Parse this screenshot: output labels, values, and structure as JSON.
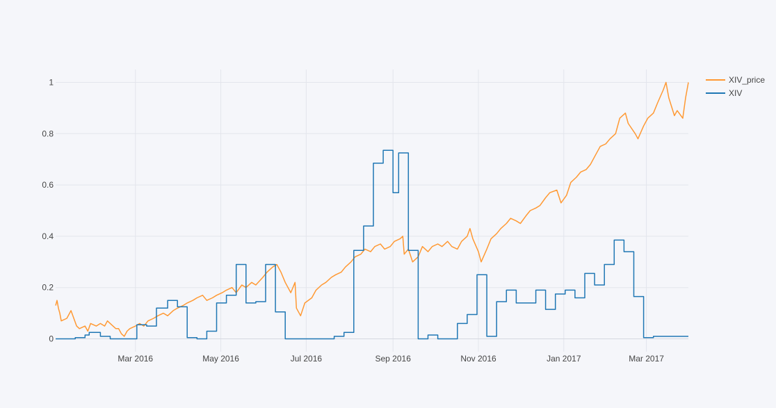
{
  "chart_data": {
    "type": "line",
    "title": "",
    "xlabel": "",
    "ylabel": "",
    "x_range": [
      "2016-01-04",
      "2017-03-31"
    ],
    "ylim": [
      -0.05,
      1.05
    ],
    "grid": true,
    "legend_placement": "top-right",
    "x_ticks": [
      {
        "date": "2016-03-01",
        "label": "Mar 2016"
      },
      {
        "date": "2016-05-01",
        "label": "May 2016"
      },
      {
        "date": "2016-07-01",
        "label": "Jul 2016"
      },
      {
        "date": "2016-09-01",
        "label": "Sep 2016"
      },
      {
        "date": "2016-11-01",
        "label": "Nov 2016"
      },
      {
        "date": "2017-01-01",
        "label": "Jan 2017"
      },
      {
        "date": "2017-03-01",
        "label": "Mar 2017"
      }
    ],
    "y_ticks": [
      {
        "value": 0,
        "label": "0"
      },
      {
        "value": 0.2,
        "label": "0.2"
      },
      {
        "value": 0.4,
        "label": "0.4"
      },
      {
        "value": 0.6,
        "label": "0.6"
      },
      {
        "value": 0.8,
        "label": "0.8"
      },
      {
        "value": 1,
        "label": "1"
      }
    ],
    "series": [
      {
        "name": "XIV_price",
        "color": "#ff9933",
        "line_shape": "linear",
        "points": [
          [
            "2016-01-04",
            0.13
          ],
          [
            "2016-01-05",
            0.15
          ],
          [
            "2016-01-06",
            0.12
          ],
          [
            "2016-01-07",
            0.1
          ],
          [
            "2016-01-08",
            0.07
          ],
          [
            "2016-01-12",
            0.08
          ],
          [
            "2016-01-14",
            0.1
          ],
          [
            "2016-01-15",
            0.11
          ],
          [
            "2016-01-19",
            0.05
          ],
          [
            "2016-01-21",
            0.04
          ],
          [
            "2016-01-25",
            0.05
          ],
          [
            "2016-01-27",
            0.03
          ],
          [
            "2016-01-29",
            0.06
          ],
          [
            "2016-02-02",
            0.05
          ],
          [
            "2016-02-05",
            0.06
          ],
          [
            "2016-02-08",
            0.05
          ],
          [
            "2016-02-10",
            0.07
          ],
          [
            "2016-02-12",
            0.06
          ],
          [
            "2016-02-16",
            0.04
          ],
          [
            "2016-02-18",
            0.04
          ],
          [
            "2016-02-20",
            0.02
          ],
          [
            "2016-02-22",
            0.01
          ],
          [
            "2016-02-24",
            0.03
          ],
          [
            "2016-02-26",
            0.04
          ],
          [
            "2016-03-01",
            0.05
          ],
          [
            "2016-03-04",
            0.06
          ],
          [
            "2016-03-07",
            0.05
          ],
          [
            "2016-03-10",
            0.07
          ],
          [
            "2016-03-14",
            0.08
          ],
          [
            "2016-03-17",
            0.09
          ],
          [
            "2016-03-21",
            0.1
          ],
          [
            "2016-03-24",
            0.09
          ],
          [
            "2016-03-28",
            0.11
          ],
          [
            "2016-03-31",
            0.12
          ],
          [
            "2016-04-04",
            0.13
          ],
          [
            "2016-04-07",
            0.14
          ],
          [
            "2016-04-11",
            0.15
          ],
          [
            "2016-04-14",
            0.16
          ],
          [
            "2016-04-18",
            0.17
          ],
          [
            "2016-04-21",
            0.15
          ],
          [
            "2016-04-25",
            0.16
          ],
          [
            "2016-04-28",
            0.17
          ],
          [
            "2016-05-02",
            0.18
          ],
          [
            "2016-05-05",
            0.19
          ],
          [
            "2016-05-09",
            0.2
          ],
          [
            "2016-05-12",
            0.18
          ],
          [
            "2016-05-16",
            0.21
          ],
          [
            "2016-05-19",
            0.2
          ],
          [
            "2016-05-23",
            0.22
          ],
          [
            "2016-05-26",
            0.21
          ],
          [
            "2016-05-31",
            0.24
          ],
          [
            "2016-06-03",
            0.26
          ],
          [
            "2016-06-07",
            0.28
          ],
          [
            "2016-06-10",
            0.29
          ],
          [
            "2016-06-13",
            0.26
          ],
          [
            "2016-06-16",
            0.22
          ],
          [
            "2016-06-20",
            0.18
          ],
          [
            "2016-06-23",
            0.22
          ],
          [
            "2016-06-24",
            0.12
          ],
          [
            "2016-06-27",
            0.09
          ],
          [
            "2016-06-30",
            0.14
          ],
          [
            "2016-07-05",
            0.16
          ],
          [
            "2016-07-08",
            0.19
          ],
          [
            "2016-07-12",
            0.21
          ],
          [
            "2016-07-15",
            0.22
          ],
          [
            "2016-07-19",
            0.24
          ],
          [
            "2016-07-22",
            0.25
          ],
          [
            "2016-07-26",
            0.26
          ],
          [
            "2016-07-29",
            0.28
          ],
          [
            "2016-08-02",
            0.3
          ],
          [
            "2016-08-05",
            0.32
          ],
          [
            "2016-08-09",
            0.33
          ],
          [
            "2016-08-12",
            0.35
          ],
          [
            "2016-08-16",
            0.34
          ],
          [
            "2016-08-19",
            0.36
          ],
          [
            "2016-08-23",
            0.37
          ],
          [
            "2016-08-26",
            0.35
          ],
          [
            "2016-08-30",
            0.36
          ],
          [
            "2016-09-02",
            0.38
          ],
          [
            "2016-09-06",
            0.39
          ],
          [
            "2016-09-08",
            0.4
          ],
          [
            "2016-09-09",
            0.33
          ],
          [
            "2016-09-12",
            0.35
          ],
          [
            "2016-09-15",
            0.3
          ],
          [
            "2016-09-19",
            0.32
          ],
          [
            "2016-09-22",
            0.36
          ],
          [
            "2016-09-26",
            0.34
          ],
          [
            "2016-09-29",
            0.36
          ],
          [
            "2016-10-03",
            0.37
          ],
          [
            "2016-10-06",
            0.36
          ],
          [
            "2016-10-10",
            0.38
          ],
          [
            "2016-10-13",
            0.36
          ],
          [
            "2016-10-17",
            0.35
          ],
          [
            "2016-10-20",
            0.38
          ],
          [
            "2016-10-24",
            0.4
          ],
          [
            "2016-10-26",
            0.43
          ],
          [
            "2016-10-28",
            0.39
          ],
          [
            "2016-11-01",
            0.34
          ],
          [
            "2016-11-03",
            0.3
          ],
          [
            "2016-11-07",
            0.35
          ],
          [
            "2016-11-10",
            0.39
          ],
          [
            "2016-11-14",
            0.41
          ],
          [
            "2016-11-17",
            0.43
          ],
          [
            "2016-11-21",
            0.45
          ],
          [
            "2016-11-24",
            0.47
          ],
          [
            "2016-11-28",
            0.46
          ],
          [
            "2016-12-01",
            0.45
          ],
          [
            "2016-12-05",
            0.48
          ],
          [
            "2016-12-08",
            0.5
          ],
          [
            "2016-12-12",
            0.51
          ],
          [
            "2016-12-15",
            0.52
          ],
          [
            "2016-12-19",
            0.55
          ],
          [
            "2016-12-22",
            0.57
          ],
          [
            "2016-12-27",
            0.58
          ],
          [
            "2016-12-30",
            0.53
          ],
          [
            "2017-01-03",
            0.56
          ],
          [
            "2017-01-06",
            0.61
          ],
          [
            "2017-01-10",
            0.63
          ],
          [
            "2017-01-13",
            0.65
          ],
          [
            "2017-01-17",
            0.66
          ],
          [
            "2017-01-20",
            0.68
          ],
          [
            "2017-01-24",
            0.72
          ],
          [
            "2017-01-27",
            0.75
          ],
          [
            "2017-01-31",
            0.76
          ],
          [
            "2017-02-03",
            0.78
          ],
          [
            "2017-02-07",
            0.8
          ],
          [
            "2017-02-10",
            0.86
          ],
          [
            "2017-02-14",
            0.88
          ],
          [
            "2017-02-16",
            0.84
          ],
          [
            "2017-02-21",
            0.8
          ],
          [
            "2017-02-23",
            0.78
          ],
          [
            "2017-02-27",
            0.83
          ],
          [
            "2017-03-02",
            0.86
          ],
          [
            "2017-03-06",
            0.88
          ],
          [
            "2017-03-09",
            0.92
          ],
          [
            "2017-03-13",
            0.97
          ],
          [
            "2017-03-15",
            1.0
          ],
          [
            "2017-03-17",
            0.94
          ],
          [
            "2017-03-21",
            0.87
          ],
          [
            "2017-03-23",
            0.89
          ],
          [
            "2017-03-27",
            0.86
          ],
          [
            "2017-03-29",
            0.94
          ],
          [
            "2017-03-31",
            1.0
          ]
        ]
      },
      {
        "name": "XIV",
        "color": "#1f77b4",
        "line_shape": "hv",
        "points": [
          [
            "2016-01-04",
            0.0
          ],
          [
            "2016-01-18",
            0.005
          ],
          [
            "2016-01-25",
            0.015
          ],
          [
            "2016-01-28",
            0.025
          ],
          [
            "2016-02-05",
            0.01
          ],
          [
            "2016-02-12",
            0.0
          ],
          [
            "2016-03-02",
            0.055
          ],
          [
            "2016-03-09",
            0.05
          ],
          [
            "2016-03-16",
            0.12
          ],
          [
            "2016-03-24",
            0.15
          ],
          [
            "2016-03-31",
            0.125
          ],
          [
            "2016-04-07",
            0.005
          ],
          [
            "2016-04-14",
            0.0
          ],
          [
            "2016-04-21",
            0.03
          ],
          [
            "2016-04-28",
            0.14
          ],
          [
            "2016-05-05",
            0.17
          ],
          [
            "2016-05-12",
            0.29
          ],
          [
            "2016-05-19",
            0.14
          ],
          [
            "2016-05-26",
            0.145
          ],
          [
            "2016-06-02",
            0.29
          ],
          [
            "2016-06-09",
            0.105
          ],
          [
            "2016-06-16",
            0.0
          ],
          [
            "2016-07-21",
            0.01
          ],
          [
            "2016-07-28",
            0.025
          ],
          [
            "2016-08-04",
            0.345
          ],
          [
            "2016-08-11",
            0.44
          ],
          [
            "2016-08-18",
            0.685
          ],
          [
            "2016-08-25",
            0.735
          ],
          [
            "2016-09-01",
            0.57
          ],
          [
            "2016-09-05",
            0.725
          ],
          [
            "2016-09-12",
            0.345
          ],
          [
            "2016-09-19",
            0.0
          ],
          [
            "2016-09-26",
            0.015
          ],
          [
            "2016-10-03",
            0.0
          ],
          [
            "2016-10-17",
            0.06
          ],
          [
            "2016-10-24",
            0.095
          ],
          [
            "2016-10-31",
            0.25
          ],
          [
            "2016-11-07",
            0.01
          ],
          [
            "2016-11-14",
            0.145
          ],
          [
            "2016-11-21",
            0.19
          ],
          [
            "2016-11-28",
            0.14
          ],
          [
            "2016-12-12",
            0.19
          ],
          [
            "2016-12-19",
            0.115
          ],
          [
            "2016-12-26",
            0.175
          ],
          [
            "2017-01-02",
            0.19
          ],
          [
            "2017-01-09",
            0.16
          ],
          [
            "2017-01-16",
            0.255
          ],
          [
            "2017-01-23",
            0.21
          ],
          [
            "2017-01-30",
            0.29
          ],
          [
            "2017-02-06",
            0.385
          ],
          [
            "2017-02-13",
            0.34
          ],
          [
            "2017-02-20",
            0.165
          ],
          [
            "2017-02-27",
            0.005
          ],
          [
            "2017-03-06",
            0.01
          ],
          [
            "2017-03-31",
            0.01
          ]
        ]
      }
    ]
  }
}
